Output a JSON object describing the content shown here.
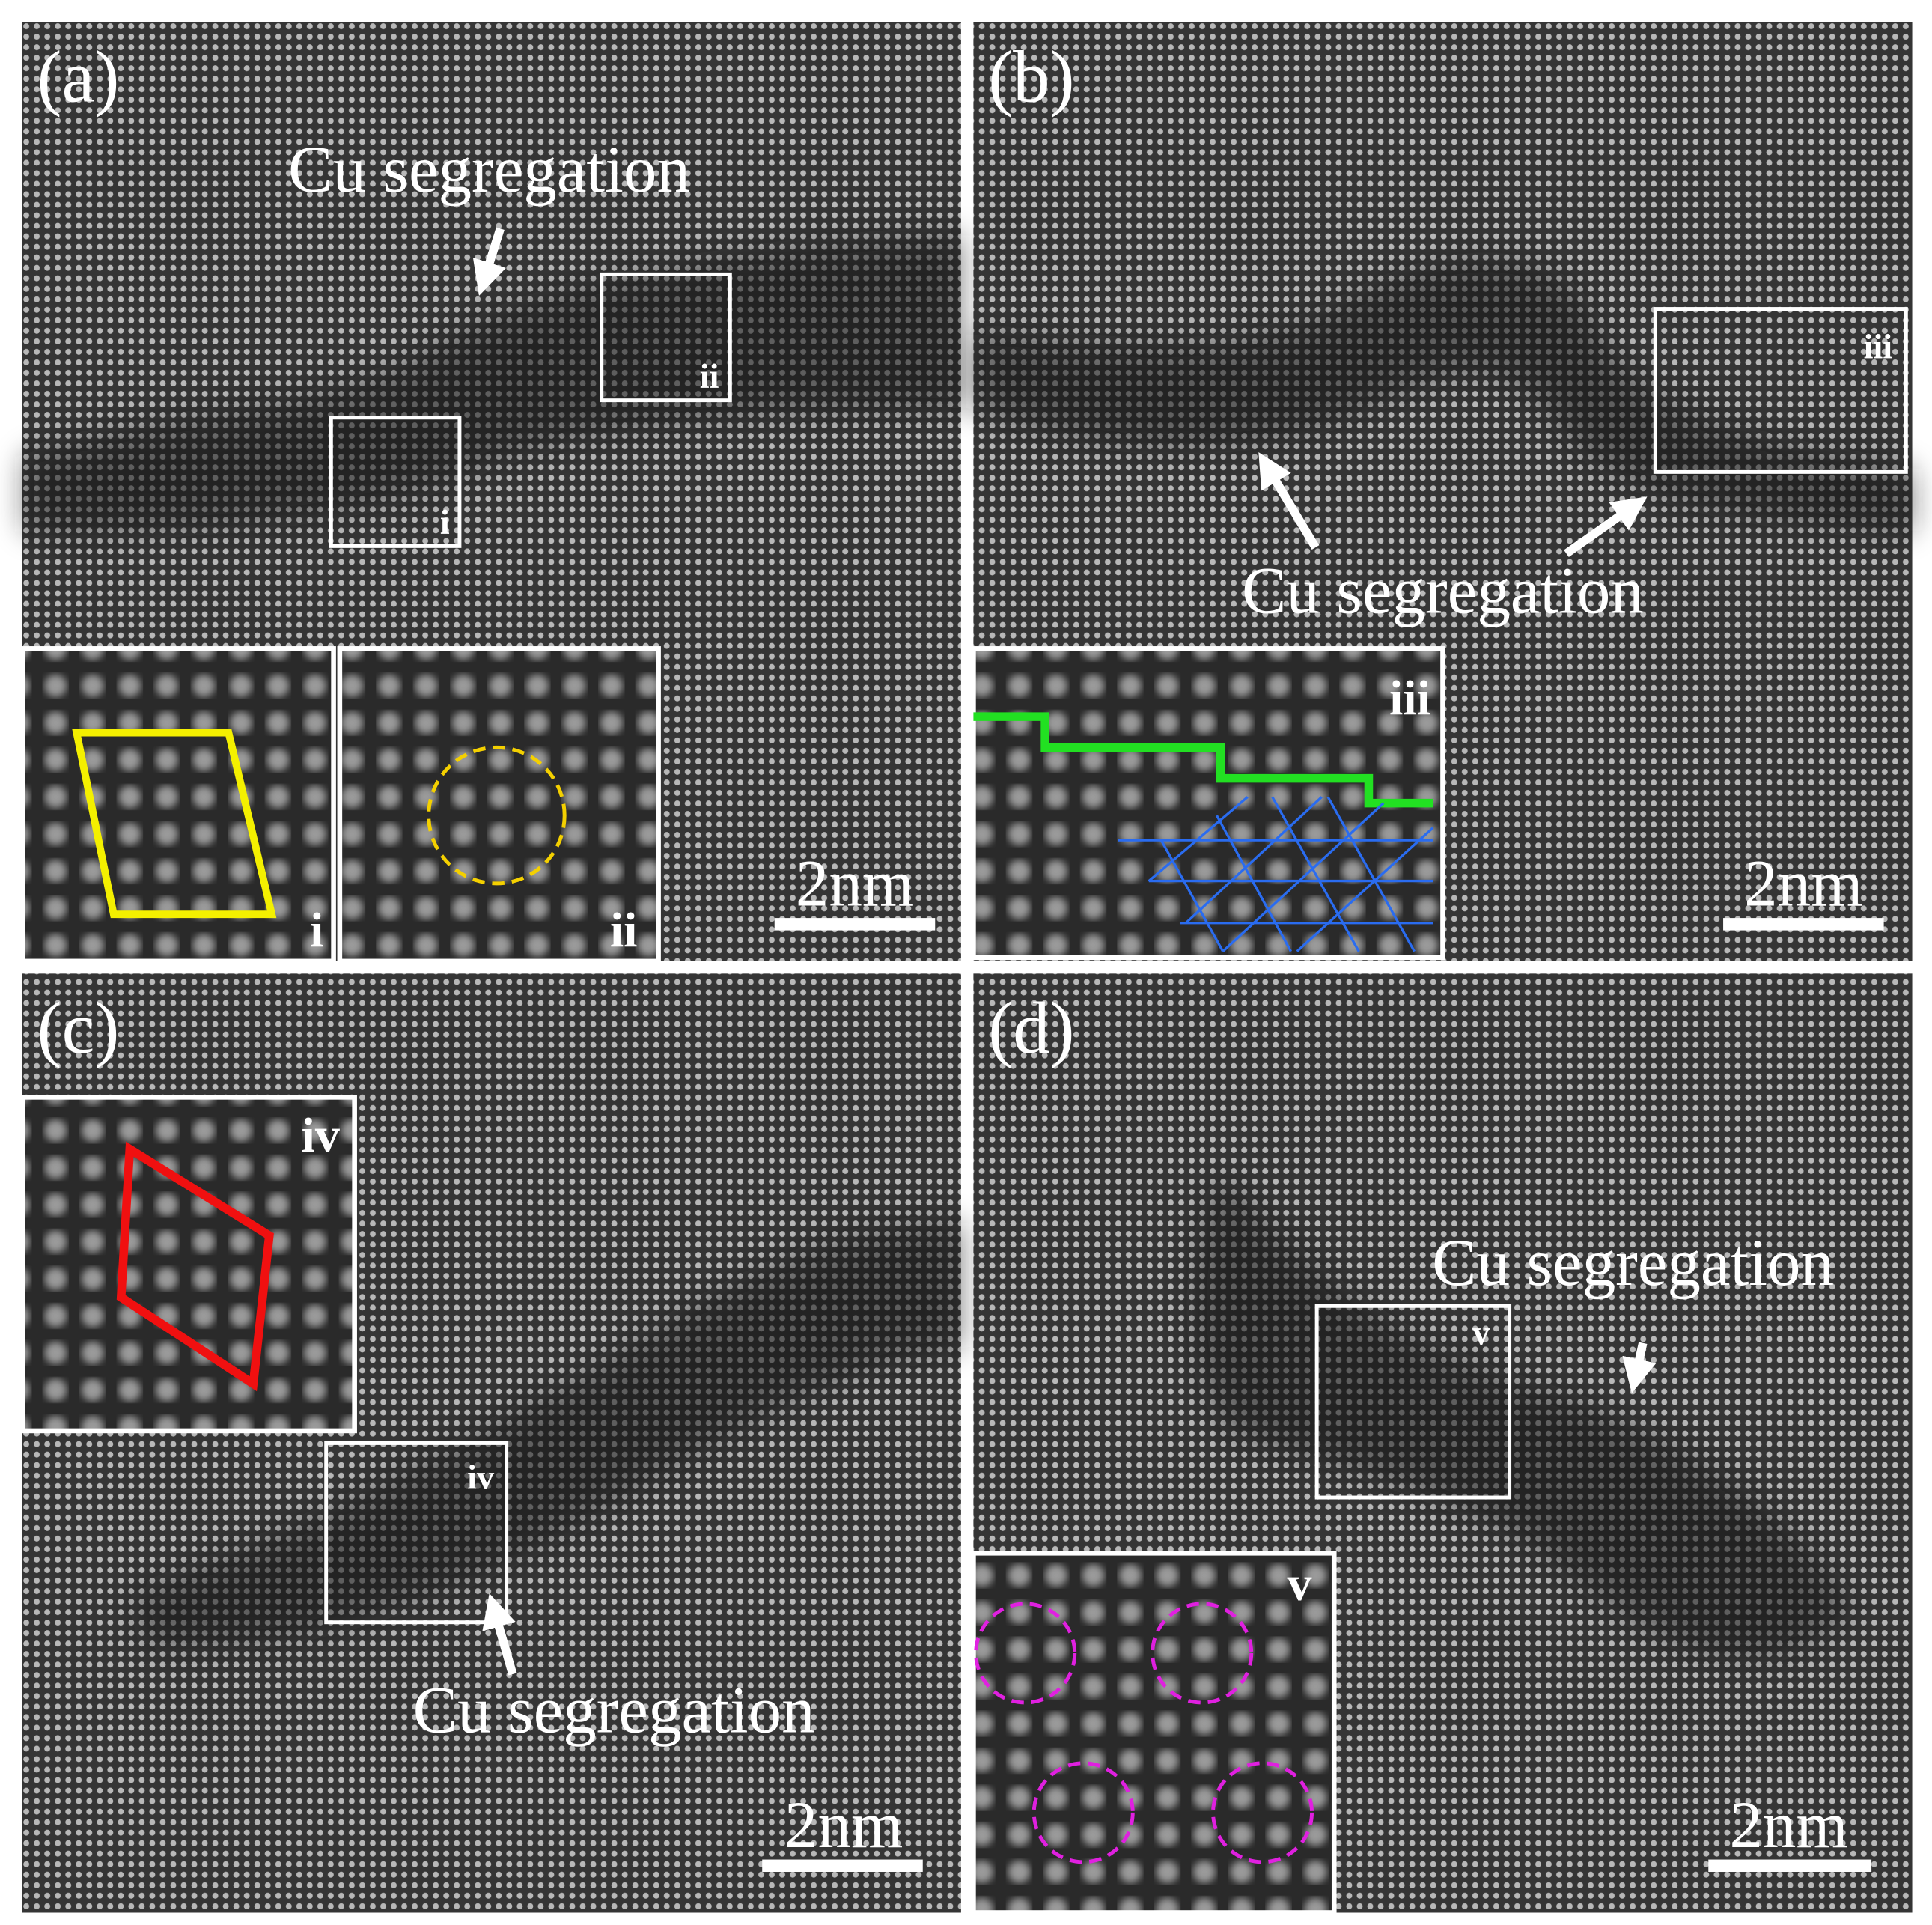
{
  "panels": [
    {
      "label": "(a)",
      "annotation": "Cu segregation",
      "scale_bar": "2nm",
      "boxes": [
        "i",
        "ii"
      ],
      "insets": [
        "i",
        "ii"
      ]
    },
    {
      "label": "(b)",
      "annotation": "Cu segregation",
      "scale_bar": "2nm",
      "boxes": [
        "iii"
      ],
      "insets": [
        "iii"
      ]
    },
    {
      "label": "(c)",
      "annotation": "Cu segregation",
      "scale_bar": "2nm",
      "boxes": [
        "iv"
      ],
      "insets": [
        "iv"
      ]
    },
    {
      "label": "(d)",
      "annotation": "Cu segregation",
      "scale_bar": "2nm",
      "boxes": [
        "v"
      ],
      "insets": [
        "v"
      ]
    }
  ]
}
